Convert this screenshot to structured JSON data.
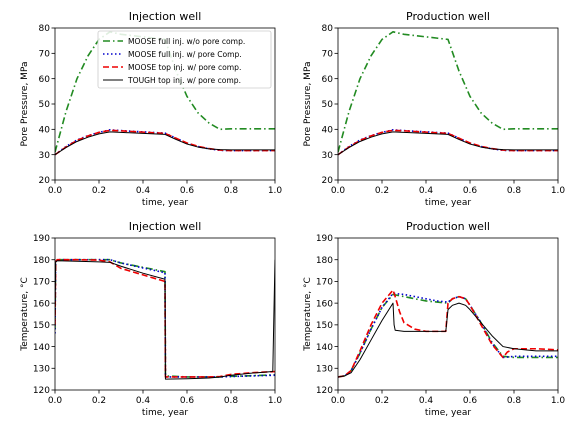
{
  "chart_data": [
    {
      "type": "line",
      "title": "Injection well",
      "xlabel": "time, year",
      "ylabel": "Pore Pressure, MPa",
      "xlim": [
        0,
        1
      ],
      "ylim": [
        20,
        80
      ],
      "xticks": [
        "0.0",
        "0.2",
        "0.4",
        "0.6",
        "0.8",
        "1.0"
      ],
      "yticks": [
        "20",
        "30",
        "40",
        "50",
        "60",
        "70",
        "80"
      ],
      "legend": "top-right",
      "series": [
        {
          "name": "MOOSE full inj. w/o pore comp.",
          "color": "#228B22",
          "dash": "dashdot",
          "x": [
            0,
            0.05,
            0.1,
            0.15,
            0.2,
            0.25,
            0.3,
            0.35,
            0.4,
            0.45,
            0.5,
            0.55,
            0.6,
            0.65,
            0.7,
            0.75,
            0.8,
            0.9,
            1.0
          ],
          "y": [
            31,
            47,
            60,
            69,
            75.5,
            78.5,
            77.5,
            77,
            76.5,
            76,
            75.5,
            63,
            53,
            46.5,
            42.5,
            40,
            40.2,
            40.2,
            40.2
          ]
        },
        {
          "name": "MOOSE full inj. w/ pore Comp.",
          "color": "#0000cc",
          "dash": "dotted",
          "x": [
            0,
            0.05,
            0.1,
            0.15,
            0.2,
            0.25,
            0.3,
            0.4,
            0.5,
            0.55,
            0.6,
            0.65,
            0.7,
            0.75,
            0.8,
            0.9,
            1.0
          ],
          "y": [
            30,
            33.2,
            35.8,
            37.5,
            38.8,
            39.8,
            39.5,
            39,
            38.5,
            36.5,
            34.5,
            33.2,
            32.3,
            31.7,
            31.6,
            31.6,
            31.6
          ]
        },
        {
          "name": "MOOSE top inj. w/ pore comp.",
          "color": "#ee0000",
          "dash": "dashed",
          "x": [
            0,
            0.05,
            0.1,
            0.15,
            0.2,
            0.25,
            0.3,
            0.4,
            0.5,
            0.55,
            0.6,
            0.65,
            0.7,
            0.75,
            0.8,
            0.9,
            1.0
          ],
          "y": [
            30,
            33,
            35.6,
            37.4,
            38.8,
            39.6,
            39.4,
            38.9,
            38.4,
            36.5,
            34.6,
            33.3,
            32.4,
            31.8,
            31.6,
            31.6,
            31.6
          ]
        },
        {
          "name": "TOUGH top inj. w/ pore comp.",
          "color": "#000000",
          "dash": "solid",
          "x": [
            0,
            0.05,
            0.1,
            0.15,
            0.2,
            0.25,
            0.3,
            0.4,
            0.5,
            0.55,
            0.6,
            0.65,
            0.7,
            0.75,
            0.8,
            0.9,
            1.0
          ],
          "y": [
            30,
            32.8,
            35.2,
            36.9,
            38.2,
            39,
            38.8,
            38.4,
            38,
            36,
            34.2,
            33,
            32.3,
            32,
            31.9,
            31.9,
            31.9
          ]
        }
      ]
    },
    {
      "type": "line",
      "title": "Production well",
      "xlabel": "time, year",
      "ylabel": "Pore Pressure, MPa",
      "xlim": [
        0,
        1
      ],
      "ylim": [
        20,
        80
      ],
      "xticks": [
        "0.0",
        "0.2",
        "0.4",
        "0.6",
        "0.8",
        "1.0"
      ],
      "yticks": [
        "20",
        "30",
        "40",
        "50",
        "60",
        "70",
        "80"
      ],
      "series": [
        {
          "color": "#228B22",
          "dash": "dashdot",
          "x": [
            0,
            0.05,
            0.1,
            0.15,
            0.2,
            0.25,
            0.3,
            0.35,
            0.4,
            0.45,
            0.5,
            0.55,
            0.6,
            0.65,
            0.7,
            0.75,
            0.8,
            0.9,
            1.0
          ],
          "y": [
            31,
            47,
            60,
            69,
            75.5,
            78.5,
            77.5,
            77,
            76.5,
            76,
            75.5,
            63,
            53,
            46.5,
            42.5,
            40,
            40.2,
            40.2,
            40.2
          ]
        },
        {
          "color": "#0000cc",
          "dash": "dotted",
          "x": [
            0,
            0.05,
            0.1,
            0.15,
            0.2,
            0.25,
            0.3,
            0.4,
            0.5,
            0.55,
            0.6,
            0.65,
            0.7,
            0.75,
            0.8,
            0.9,
            1.0
          ],
          "y": [
            30,
            33.2,
            35.8,
            37.5,
            38.8,
            39.8,
            39.5,
            39,
            38.5,
            36.5,
            34.5,
            33.2,
            32.3,
            31.7,
            31.6,
            31.6,
            31.6
          ]
        },
        {
          "color": "#ee0000",
          "dash": "dashed",
          "x": [
            0,
            0.05,
            0.1,
            0.15,
            0.2,
            0.25,
            0.3,
            0.4,
            0.5,
            0.55,
            0.6,
            0.65,
            0.7,
            0.75,
            0.8,
            0.9,
            1.0
          ],
          "y": [
            30,
            33,
            35.6,
            37.4,
            38.8,
            39.6,
            39.4,
            38.9,
            38.4,
            36.5,
            34.6,
            33.3,
            32.4,
            31.8,
            31.6,
            31.6,
            31.6
          ]
        },
        {
          "color": "#000000",
          "dash": "solid",
          "x": [
            0,
            0.05,
            0.1,
            0.15,
            0.2,
            0.25,
            0.3,
            0.4,
            0.5,
            0.55,
            0.6,
            0.65,
            0.7,
            0.75,
            0.8,
            0.9,
            1.0
          ],
          "y": [
            30,
            32.8,
            35.2,
            36.9,
            38.2,
            39,
            38.8,
            38.4,
            38,
            36,
            34.2,
            33,
            32.3,
            32,
            31.9,
            31.9,
            31.9
          ]
        }
      ]
    },
    {
      "type": "line",
      "title": "Injection well",
      "xlabel": "time, year",
      "ylabel": "Temperature, °C",
      "xlim": [
        0,
        1
      ],
      "ylim": [
        120,
        190
      ],
      "xticks": [
        "0.0",
        "0.2",
        "0.4",
        "0.6",
        "0.8",
        "1.0"
      ],
      "yticks": [
        "120",
        "130",
        "140",
        "150",
        "160",
        "170",
        "180",
        "190"
      ],
      "series": [
        {
          "color": "#228B22",
          "dash": "dashdot",
          "x": [
            0,
            0.003,
            0.01,
            0.1,
            0.2,
            0.25,
            0.3,
            0.4,
            0.5,
            0.501,
            0.502,
            0.6,
            0.7,
            0.75,
            0.8,
            0.9,
            1.0
          ],
          "y": [
            148,
            179,
            180,
            180,
            180,
            180,
            178.5,
            176.5,
            174.5,
            150,
            126.5,
            126,
            126,
            126,
            126.3,
            126.6,
            127
          ]
        },
        {
          "color": "#0000cc",
          "dash": "dotted",
          "x": [
            0,
            0.003,
            0.01,
            0.1,
            0.2,
            0.25,
            0.3,
            0.4,
            0.5,
            0.501,
            0.502,
            0.6,
            0.7,
            0.75,
            0.8,
            0.9,
            1.0
          ],
          "y": [
            146,
            179,
            180,
            180,
            180,
            180,
            178.5,
            176.2,
            174,
            150,
            126,
            126,
            126,
            126,
            126.2,
            126.5,
            126.8
          ]
        },
        {
          "color": "#ee0000",
          "dash": "dashed",
          "x": [
            0,
            0.003,
            0.01,
            0.1,
            0.2,
            0.25,
            0.3,
            0.4,
            0.5,
            0.501,
            0.502,
            0.6,
            0.7,
            0.75,
            0.8,
            0.9,
            1.0
          ],
          "y": [
            150,
            179,
            180,
            180,
            179.8,
            179,
            176,
            173,
            170,
            148,
            126,
            126,
            126,
            126.2,
            127.2,
            128,
            128.5
          ]
        },
        {
          "color": "#000000",
          "dash": "solid",
          "x": [
            0,
            0.003,
            0.01,
            0.1,
            0.2,
            0.25,
            0.3,
            0.4,
            0.5,
            0.501,
            0.502,
            0.6,
            0.7,
            0.75,
            0.8,
            0.9,
            0.99,
            0.995,
            1.0
          ],
          "y": [
            152,
            179,
            179.5,
            179.3,
            179,
            178.8,
            177,
            173.8,
            171,
            148,
            125,
            125.2,
            125.5,
            126,
            126.8,
            127.8,
            128.5,
            155,
            180
          ]
        }
      ]
    },
    {
      "type": "line",
      "title": "Production well",
      "xlabel": "time, year",
      "ylabel": "Temperature, °C",
      "xlim": [
        0,
        1
      ],
      "ylim": [
        120,
        190
      ],
      "xticks": [
        "0.0",
        "0.2",
        "0.4",
        "0.6",
        "0.8",
        "1.0"
      ],
      "yticks": [
        "120",
        "130",
        "140",
        "150",
        "160",
        "170",
        "180",
        "190"
      ],
      "series": [
        {
          "color": "#228B22",
          "dash": "dashdot",
          "x": [
            0,
            0.03,
            0.06,
            0.1,
            0.15,
            0.2,
            0.25,
            0.3,
            0.35,
            0.4,
            0.45,
            0.5,
            0.52,
            0.55,
            0.58,
            0.6,
            0.65,
            0.7,
            0.75,
            0.8,
            0.9,
            1.0
          ],
          "y": [
            126,
            126.5,
            129,
            137,
            148,
            158,
            164,
            163,
            162,
            161,
            160.5,
            160,
            162,
            163,
            162,
            159,
            151,
            142,
            135.5,
            135,
            135,
            135
          ]
        },
        {
          "color": "#0000cc",
          "dash": "dotted",
          "x": [
            0,
            0.03,
            0.06,
            0.1,
            0.15,
            0.2,
            0.25,
            0.3,
            0.35,
            0.4,
            0.45,
            0.5,
            0.52,
            0.55,
            0.58,
            0.6,
            0.65,
            0.7,
            0.75,
            0.8,
            0.9,
            1.0
          ],
          "y": [
            126,
            126.5,
            129,
            137,
            148,
            158,
            164.5,
            164,
            163,
            162,
            161,
            160.5,
            162,
            163,
            162,
            159,
            151,
            141.5,
            135,
            135.5,
            135.5,
            135.5
          ]
        },
        {
          "color": "#ee0000",
          "dash": "dashed",
          "x": [
            0,
            0.03,
            0.06,
            0.1,
            0.15,
            0.2,
            0.25,
            0.26,
            0.28,
            0.3,
            0.35,
            0.4,
            0.45,
            0.49,
            0.5,
            0.52,
            0.55,
            0.58,
            0.6,
            0.65,
            0.7,
            0.75,
            0.77,
            0.8,
            0.9,
            1.0
          ],
          "y": [
            126,
            126.5,
            129,
            138,
            150,
            160,
            166,
            163,
            156,
            151,
            148,
            147,
            147,
            147,
            160,
            162,
            163,
            162,
            159,
            150,
            141,
            135,
            137.5,
            139,
            139,
            138.5
          ]
        },
        {
          "color": "#000000",
          "dash": "solid",
          "x": [
            0,
            0.03,
            0.06,
            0.1,
            0.15,
            0.2,
            0.25,
            0.255,
            0.26,
            0.3,
            0.4,
            0.49,
            0.5,
            0.52,
            0.55,
            0.58,
            0.6,
            0.65,
            0.7,
            0.75,
            0.8,
            0.9,
            1.0
          ],
          "y": [
            126,
            126.5,
            128,
            134,
            143,
            152,
            160,
            150,
            147.5,
            147,
            147,
            147,
            157,
            159,
            160,
            159,
            157,
            151,
            145,
            140,
            139,
            138,
            138
          ]
        }
      ]
    }
  ]
}
